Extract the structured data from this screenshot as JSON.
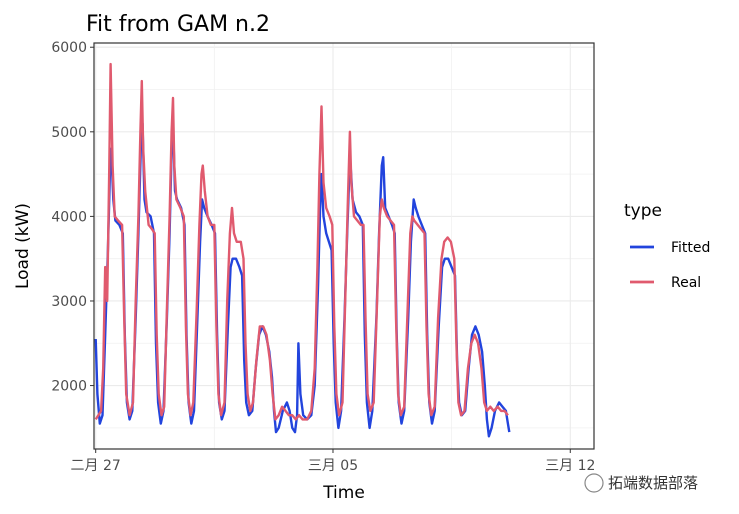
{
  "chart_data": {
    "type": "line",
    "title": "Fit from GAM n.2",
    "xlabel": "Time",
    "ylabel": "Load (kW)",
    "x_tick_labels": [
      "二月 27",
      "三月 05",
      "三月 12"
    ],
    "y_ticks": [
      2000,
      3000,
      4000,
      5000,
      6000
    ],
    "xlim": [
      -0.05,
      14.7
    ],
    "ylim": [
      1250,
      6050
    ],
    "grid": true,
    "legend": {
      "title": "type",
      "position": "right"
    },
    "x_unit_note_values_are_days_since": "二月 27",
    "series": [
      {
        "name": "Fitted",
        "color": "#2244dd",
        "points": [
          [
            0.0,
            2550
          ],
          [
            0.05,
            1900
          ],
          [
            0.12,
            1550
          ],
          [
            0.2,
            1650
          ],
          [
            0.28,
            2600
          ],
          [
            0.36,
            3600
          ],
          [
            0.42,
            4500
          ],
          [
            0.46,
            4800
          ],
          [
            0.52,
            4200
          ],
          [
            0.58,
            3950
          ],
          [
            0.7,
            3900
          ],
          [
            0.8,
            3800
          ],
          [
            0.86,
            2600
          ],
          [
            0.92,
            1800
          ],
          [
            1.0,
            1600
          ],
          [
            1.08,
            1700
          ],
          [
            1.18,
            2800
          ],
          [
            1.26,
            3800
          ],
          [
            1.33,
            4800
          ],
          [
            1.38,
            5100
          ],
          [
            1.44,
            4200
          ],
          [
            1.5,
            4050
          ],
          [
            1.62,
            4000
          ],
          [
            1.72,
            3800
          ],
          [
            1.78,
            2500
          ],
          [
            1.84,
            1800
          ],
          [
            1.92,
            1550
          ],
          [
            2.0,
            1700
          ],
          [
            2.1,
            2800
          ],
          [
            2.18,
            3800
          ],
          [
            2.24,
            4800
          ],
          [
            2.28,
            5100
          ],
          [
            2.34,
            4300
          ],
          [
            2.4,
            4200
          ],
          [
            2.52,
            4100
          ],
          [
            2.62,
            3900
          ],
          [
            2.68,
            2600
          ],
          [
            2.74,
            1800
          ],
          [
            2.82,
            1550
          ],
          [
            2.9,
            1700
          ],
          [
            3.0,
            2800
          ],
          [
            3.08,
            3700
          ],
          [
            3.14,
            4200
          ],
          [
            3.2,
            4100
          ],
          [
            3.3,
            4000
          ],
          [
            3.42,
            3900
          ],
          [
            3.52,
            3800
          ],
          [
            3.58,
            2600
          ],
          [
            3.64,
            1800
          ],
          [
            3.72,
            1600
          ],
          [
            3.8,
            1700
          ],
          [
            3.9,
            2700
          ],
          [
            3.98,
            3400
          ],
          [
            4.04,
            3500
          ],
          [
            4.14,
            3500
          ],
          [
            4.24,
            3400
          ],
          [
            4.32,
            3300
          ],
          [
            4.38,
            2300
          ],
          [
            4.44,
            1800
          ],
          [
            4.52,
            1650
          ],
          [
            4.62,
            1700
          ],
          [
            4.72,
            2200
          ],
          [
            4.82,
            2600
          ],
          [
            4.92,
            2700
          ],
          [
            5.02,
            2600
          ],
          [
            5.12,
            2400
          ],
          [
            5.2,
            2100
          ],
          [
            5.26,
            1700
          ],
          [
            5.32,
            1450
          ],
          [
            5.4,
            1500
          ],
          [
            5.52,
            1700
          ],
          [
            5.64,
            1800
          ],
          [
            5.72,
            1700
          ],
          [
            5.8,
            1500
          ],
          [
            5.88,
            1450
          ],
          [
            5.94,
            1650
          ],
          [
            5.98,
            2500
          ],
          [
            6.04,
            1900
          ],
          [
            6.12,
            1650
          ],
          [
            6.24,
            1600
          ],
          [
            6.36,
            1650
          ],
          [
            6.46,
            2000
          ],
          [
            6.56,
            3200
          ],
          [
            6.62,
            4100
          ],
          [
            6.66,
            4500
          ],
          [
            6.72,
            4000
          ],
          [
            6.8,
            3800
          ],
          [
            6.88,
            3700
          ],
          [
            6.96,
            3600
          ],
          [
            7.02,
            2500
          ],
          [
            7.08,
            1800
          ],
          [
            7.16,
            1500
          ],
          [
            7.24,
            1700
          ],
          [
            7.34,
            2800
          ],
          [
            7.42,
            3800
          ],
          [
            7.48,
            4500
          ],
          [
            7.52,
            4600
          ],
          [
            7.58,
            4200
          ],
          [
            7.68,
            4050
          ],
          [
            7.78,
            4000
          ],
          [
            7.88,
            3900
          ],
          [
            7.94,
            2600
          ],
          [
            8.0,
            1800
          ],
          [
            8.08,
            1500
          ],
          [
            8.16,
            1700
          ],
          [
            8.28,
            2800
          ],
          [
            8.36,
            3800
          ],
          [
            8.44,
            4600
          ],
          [
            8.48,
            4700
          ],
          [
            8.54,
            4100
          ],
          [
            8.64,
            4000
          ],
          [
            8.74,
            3900
          ],
          [
            8.82,
            3800
          ],
          [
            8.88,
            2600
          ],
          [
            8.94,
            1800
          ],
          [
            9.02,
            1550
          ],
          [
            9.1,
            1700
          ],
          [
            9.22,
            2800
          ],
          [
            9.3,
            3700
          ],
          [
            9.38,
            4200
          ],
          [
            9.44,
            4100
          ],
          [
            9.52,
            4000
          ],
          [
            9.62,
            3900
          ],
          [
            9.72,
            3800
          ],
          [
            9.78,
            2600
          ],
          [
            9.84,
            1800
          ],
          [
            9.92,
            1550
          ],
          [
            10.0,
            1700
          ],
          [
            10.12,
            2700
          ],
          [
            10.22,
            3400
          ],
          [
            10.3,
            3500
          ],
          [
            10.4,
            3500
          ],
          [
            10.5,
            3400
          ],
          [
            10.6,
            3300
          ],
          [
            10.66,
            2300
          ],
          [
            10.72,
            1800
          ],
          [
            10.8,
            1650
          ],
          [
            10.9,
            1700
          ],
          [
            11.0,
            2200
          ],
          [
            11.1,
            2600
          ],
          [
            11.2,
            2700
          ],
          [
            11.3,
            2600
          ],
          [
            11.4,
            2400
          ],
          [
            11.48,
            2000
          ],
          [
            11.54,
            1600
          ],
          [
            11.6,
            1400
          ],
          [
            11.68,
            1500
          ],
          [
            11.78,
            1700
          ],
          [
            11.9,
            1800
          ],
          [
            12.0,
            1750
          ],
          [
            12.1,
            1700
          ],
          [
            12.16,
            1550
          ],
          [
            12.2,
            1450
          ]
        ]
      },
      {
        "name": "Real",
        "color": "#e05a6e",
        "points": [
          [
            0.0,
            1600
          ],
          [
            0.08,
            1650
          ],
          [
            0.16,
            1700
          ],
          [
            0.22,
            2200
          ],
          [
            0.28,
            3400
          ],
          [
            0.34,
            3000
          ],
          [
            0.4,
            4600
          ],
          [
            0.44,
            5800
          ],
          [
            0.5,
            4600
          ],
          [
            0.56,
            4000
          ],
          [
            0.66,
            3950
          ],
          [
            0.78,
            3900
          ],
          [
            0.84,
            2800
          ],
          [
            0.9,
            1900
          ],
          [
            1.0,
            1650
          ],
          [
            1.1,
            1800
          ],
          [
            1.18,
            3000
          ],
          [
            1.26,
            4000
          ],
          [
            1.32,
            5000
          ],
          [
            1.36,
            5600
          ],
          [
            1.4,
            4800
          ],
          [
            1.46,
            4300
          ],
          [
            1.56,
            3900
          ],
          [
            1.66,
            3850
          ],
          [
            1.74,
            3800
          ],
          [
            1.8,
            2600
          ],
          [
            1.86,
            1900
          ],
          [
            1.94,
            1650
          ],
          [
            2.02,
            1750
          ],
          [
            2.1,
            2900
          ],
          [
            2.18,
            4000
          ],
          [
            2.24,
            5000
          ],
          [
            2.28,
            5400
          ],
          [
            2.32,
            4600
          ],
          [
            2.38,
            4200
          ],
          [
            2.5,
            4100
          ],
          [
            2.6,
            4000
          ],
          [
            2.66,
            2700
          ],
          [
            2.72,
            1900
          ],
          [
            2.8,
            1650
          ],
          [
            2.88,
            1800
          ],
          [
            2.98,
            2900
          ],
          [
            3.06,
            3900
          ],
          [
            3.12,
            4500
          ],
          [
            3.16,
            4600
          ],
          [
            3.22,
            4300
          ],
          [
            3.3,
            4000
          ],
          [
            3.4,
            3900
          ],
          [
            3.5,
            3900
          ],
          [
            3.56,
            2700
          ],
          [
            3.62,
            1900
          ],
          [
            3.7,
            1650
          ],
          [
            3.8,
            1800
          ],
          [
            3.88,
            3000
          ],
          [
            3.96,
            3800
          ],
          [
            4.02,
            4100
          ],
          [
            4.08,
            3800
          ],
          [
            4.16,
            3700
          ],
          [
            4.28,
            3700
          ],
          [
            4.36,
            3500
          ],
          [
            4.42,
            2500
          ],
          [
            4.48,
            1900
          ],
          [
            4.56,
            1700
          ],
          [
            4.64,
            1800
          ],
          [
            4.74,
            2300
          ],
          [
            4.84,
            2700
          ],
          [
            4.94,
            2700
          ],
          [
            5.04,
            2600
          ],
          [
            5.14,
            2300
          ],
          [
            5.22,
            1900
          ],
          [
            5.3,
            1600
          ],
          [
            5.4,
            1650
          ],
          [
            5.5,
            1750
          ],
          [
            5.6,
            1700
          ],
          [
            5.7,
            1650
          ],
          [
            5.8,
            1650
          ],
          [
            5.9,
            1600
          ],
          [
            6.0,
            1650
          ],
          [
            6.1,
            1600
          ],
          [
            6.24,
            1600
          ],
          [
            6.36,
            1700
          ],
          [
            6.46,
            2200
          ],
          [
            6.54,
            3400
          ],
          [
            6.6,
            4500
          ],
          [
            6.66,
            5300
          ],
          [
            6.72,
            4400
          ],
          [
            6.8,
            4100
          ],
          [
            6.9,
            4000
          ],
          [
            6.98,
            3900
          ],
          [
            7.04,
            2700
          ],
          [
            7.1,
            1900
          ],
          [
            7.18,
            1650
          ],
          [
            7.28,
            1800
          ],
          [
            7.36,
            3000
          ],
          [
            7.44,
            4200
          ],
          [
            7.5,
            5000
          ],
          [
            7.54,
            4400
          ],
          [
            7.62,
            4000
          ],
          [
            7.72,
            3950
          ],
          [
            7.82,
            3900
          ],
          [
            7.9,
            3900
          ],
          [
            7.96,
            2800
          ],
          [
            8.02,
            1900
          ],
          [
            8.1,
            1700
          ],
          [
            8.2,
            1800
          ],
          [
            8.3,
            3000
          ],
          [
            8.38,
            4000
          ],
          [
            8.44,
            4200
          ],
          [
            8.5,
            4100
          ],
          [
            8.6,
            4000
          ],
          [
            8.7,
            3950
          ],
          [
            8.8,
            3900
          ],
          [
            8.86,
            2800
          ],
          [
            8.92,
            1900
          ],
          [
            9.0,
            1650
          ],
          [
            9.1,
            1750
          ],
          [
            9.2,
            2900
          ],
          [
            9.28,
            3800
          ],
          [
            9.34,
            4000
          ],
          [
            9.4,
            3950
          ],
          [
            9.5,
            3900
          ],
          [
            9.6,
            3850
          ],
          [
            9.7,
            3800
          ],
          [
            9.76,
            2700
          ],
          [
            9.82,
            1900
          ],
          [
            9.9,
            1650
          ],
          [
            10.0,
            1750
          ],
          [
            10.1,
            2800
          ],
          [
            10.2,
            3500
          ],
          [
            10.28,
            3700
          ],
          [
            10.38,
            3750
          ],
          [
            10.48,
            3700
          ],
          [
            10.58,
            3500
          ],
          [
            10.64,
            2500
          ],
          [
            10.7,
            1800
          ],
          [
            10.78,
            1650
          ],
          [
            10.88,
            1700
          ],
          [
            10.98,
            2200
          ],
          [
            11.08,
            2500
          ],
          [
            11.18,
            2600
          ],
          [
            11.28,
            2500
          ],
          [
            11.38,
            2200
          ],
          [
            11.46,
            1800
          ],
          [
            11.54,
            1700
          ],
          [
            11.64,
            1750
          ],
          [
            11.74,
            1700
          ],
          [
            11.86,
            1750
          ],
          [
            11.96,
            1700
          ],
          [
            12.06,
            1700
          ],
          [
            12.16,
            1650
          ]
        ]
      }
    ]
  },
  "watermark": "拓端数据部落"
}
